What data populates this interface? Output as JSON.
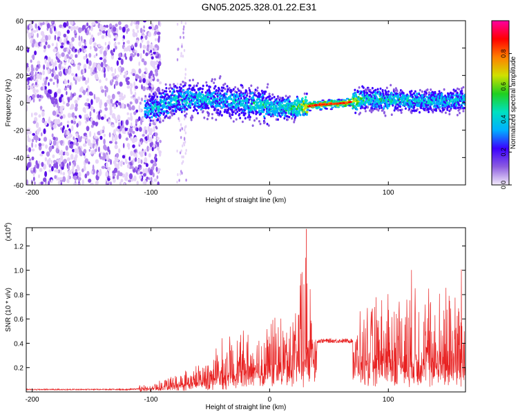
{
  "title": "GN05.2025.328.01.22.E31",
  "spectrogram": {
    "xlabel": "Height of straight line (km)",
    "ylabel": "Frequency (Hz)",
    "xlim": [
      -205,
      165
    ],
    "ylim": [
      -60,
      60
    ],
    "xticks": [
      -200,
      -100,
      0,
      100
    ],
    "yticks": [
      -60,
      -40,
      -20,
      0,
      20,
      40,
      60
    ]
  },
  "colorbar": {
    "label": "Normalized spectral amplitude",
    "ticks": [
      "0.0",
      "0.2",
      "0.4",
      "0.6",
      "0.8"
    ],
    "colors": [
      "#f4ecfb",
      "#8c5ce0",
      "#3b00ff",
      "#00b0ff",
      "#00e0c0",
      "#20d020",
      "#d0e000",
      "#ff8000",
      "#ff0000",
      "#ff00a0"
    ]
  },
  "snr": {
    "xlabel": "Height of straight line (km)",
    "ylabel": "SNR (10 * v/v)",
    "scale_label": "(x10",
    "scale_exp": "4",
    "scale_close": ")",
    "xticks": [
      -200,
      -100,
      0,
      100
    ],
    "yticks": [
      "0.2",
      "0.4",
      "0.6",
      "0.8",
      "1.0",
      "1.2"
    ],
    "line_color": "#e82020"
  },
  "chart_data": [
    {
      "type": "heatmap",
      "title": "GN05.2025.328.01.22.E31",
      "xlabel": "Height of straight line (km)",
      "ylabel": "Frequency (Hz)",
      "xlim": [
        -205,
        165
      ],
      "ylim": [
        -60,
        60
      ],
      "colorbar_label": "Normalized spectral amplitude",
      "colorbar_range": [
        0,
        1
      ],
      "ridge": {
        "x": [
          -100,
          -80,
          -60,
          -40,
          -20,
          0,
          20,
          35,
          50,
          65,
          80,
          100,
          130,
          165
        ],
        "y": [
          -5,
          2,
          3,
          2,
          0,
          -3,
          -4,
          -2,
          -1,
          0,
          3,
          2,
          1,
          2
        ],
        "peak_amplitude": [
          0.4,
          0.45,
          0.45,
          0.4,
          0.45,
          0.5,
          0.55,
          0.95,
          0.95,
          0.9,
          0.5,
          0.5,
          0.45,
          0.45
        ]
      },
      "noise_region_x": [
        -205,
        -100
      ]
    },
    {
      "type": "line",
      "xlabel": "Height of straight line (km)",
      "ylabel": "SNR (10 * v/v)",
      "xlim": [
        -205,
        165
      ],
      "ylim": [
        0,
        13500
      ],
      "envelope": {
        "x": [
          -205,
          -120,
          -100,
          -80,
          -60,
          -40,
          -20,
          0,
          20,
          30,
          35,
          40,
          70,
          80,
          100,
          120,
          140,
          165
        ],
        "base": [
          200,
          200,
          300,
          500,
          800,
          1200,
          1800,
          2200,
          2500,
          2500,
          4000,
          4200,
          4200,
          2500,
          2500,
          2400,
          2400,
          2500
        ],
        "peak": [
          400,
          400,
          700,
          1600,
          2500,
          4500,
          5500,
          6500,
          7000,
          13500,
          9000,
          4500,
          4500,
          8000,
          9000,
          10500,
          9000,
          11000
        ]
      }
    }
  ]
}
